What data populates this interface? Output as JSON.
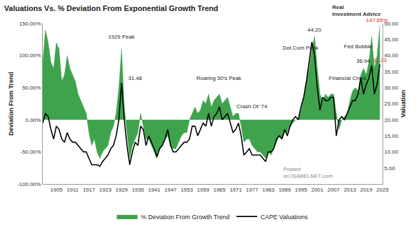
{
  "chart_data": {
    "type": "line",
    "title": "Valuations Vs. % Deviation From Exponential Growth Trend",
    "logo_text": "Real Investment Advice",
    "source": "Posted on ISABELNET.com",
    "y_label": "Deviation From Trend",
    "y2_label": "Valuation",
    "x": [
      1900,
      1901,
      1902,
      1903,
      1904,
      1905,
      1906,
      1907,
      1908,
      1909,
      1910,
      1911,
      1912,
      1913,
      1914,
      1915,
      1916,
      1917,
      1918,
      1919,
      1920,
      1921,
      1922,
      1923,
      1924,
      1925,
      1926,
      1927,
      1928,
      1929,
      1930,
      1931,
      1932,
      1933,
      1934,
      1935,
      1936,
      1937,
      1938,
      1939,
      1940,
      1941,
      1942,
      1943,
      1944,
      1945,
      1946,
      1947,
      1948,
      1949,
      1950,
      1951,
      1952,
      1953,
      1954,
      1955,
      1956,
      1957,
      1958,
      1959,
      1960,
      1961,
      1962,
      1963,
      1964,
      1965,
      1966,
      1967,
      1968,
      1969,
      1970,
      1971,
      1972,
      1973,
      1974,
      1975,
      1976,
      1977,
      1978,
      1979,
      1980,
      1981,
      1982,
      1983,
      1984,
      1985,
      1986,
      1987,
      1988,
      1989,
      1990,
      1991,
      1992,
      1993,
      1994,
      1995,
      1996,
      1997,
      1998,
      1999,
      2000,
      2001,
      2002,
      2003,
      2004,
      2005,
      2006,
      2007,
      2008,
      2009,
      2010,
      2011,
      2012,
      2013,
      2014,
      2015,
      2016,
      2017,
      2018,
      2019,
      2020,
      2021,
      2022,
      2023,
      2024
    ],
    "series": [
      {
        "name": "% Deviation From Growth Trend",
        "type": "area",
        "axis": "y",
        "color": "#3fa34d",
        "values": [
          90,
          140,
          120,
          90,
          80,
          120,
          110,
          60,
          70,
          100,
          80,
          70,
          60,
          40,
          30,
          20,
          10,
          -20,
          -40,
          -30,
          -50,
          -60,
          -50,
          -45,
          -40,
          -20,
          -10,
          10,
          50,
          110,
          20,
          -20,
          -60,
          -40,
          -30,
          -20,
          10,
          -10,
          -30,
          -30,
          -40,
          -50,
          -60,
          -45,
          -40,
          -30,
          -25,
          -40,
          -45,
          -45,
          -35,
          -25,
          -20,
          -20,
          0,
          10,
          20,
          10,
          15,
          30,
          25,
          40,
          20,
          30,
          35,
          40,
          25,
          30,
          35,
          20,
          5,
          10,
          10,
          -10,
          -35,
          -30,
          -30,
          -40,
          -45,
          -50,
          -50,
          -55,
          -60,
          -50,
          -55,
          -45,
          -35,
          -25,
          -30,
          -20,
          -20,
          -10,
          -5,
          0,
          0,
          15,
          35,
          60,
          80,
          110,
          130,
          80,
          40,
          30,
          40,
          35,
          40,
          40,
          10,
          -15,
          0,
          5,
          10,
          30,
          45,
          50,
          45,
          70,
          80,
          70,
          90,
          130,
          80,
          100,
          147.65
        ]
      },
      {
        "name": "CAPE Valuations",
        "type": "line",
        "axis": "y2",
        "color": "#000000",
        "values": [
          19,
          22,
          21,
          17,
          14,
          18,
          17,
          14,
          13,
          16,
          14,
          13,
          13,
          12,
          11,
          10,
          10,
          8,
          6,
          6,
          6,
          5.5,
          7,
          8,
          9,
          11,
          12,
          15,
          20,
          31.48,
          20,
          12,
          6,
          10,
          13,
          12,
          18,
          17,
          12,
          15,
          13,
          11,
          8.5,
          11,
          12,
          14,
          17,
          12,
          10,
          10,
          11,
          12,
          13,
          13,
          14,
          18,
          18,
          15,
          17,
          19,
          18,
          22,
          18,
          21,
          22,
          24,
          20,
          21,
          22,
          19,
          16,
          17,
          19,
          15,
          9,
          10,
          11,
          9,
          9,
          9,
          9,
          8,
          7,
          10,
          10,
          11,
          14,
          15,
          14,
          17,
          15,
          18,
          20,
          21,
          20,
          24,
          27,
          32,
          38,
          44.2,
          40,
          30,
          23,
          27,
          26,
          26,
          27,
          27,
          15,
          20,
          21,
          20,
          22,
          24,
          26,
          26,
          28,
          33,
          28,
          31,
          33,
          36.94,
          28,
          31,
          37.23
        ]
      }
    ],
    "xlim": [
      1900,
      2025
    ],
    "xticks": [
      1905,
      1911,
      1917,
      1923,
      1929,
      1935,
      1941,
      1947,
      1953,
      1959,
      1965,
      1971,
      1977,
      1983,
      1989,
      1995,
      2001,
      2007,
      2013,
      2019,
      2025
    ],
    "ylim": [
      -100,
      150
    ],
    "yticks": [
      {
        "value": -100,
        "label": "-100.00%"
      },
      {
        "value": -50,
        "label": "-50.00%"
      },
      {
        "value": 0,
        "label": "0.00%"
      },
      {
        "value": 50,
        "label": "50.00%"
      },
      {
        "value": 100,
        "label": "100.00%"
      },
      {
        "value": 150,
        "label": "150.00%"
      }
    ],
    "y2lim": [
      0,
      50
    ],
    "y2ticks": [
      {
        "value": 5,
        "label": "5.00"
      },
      {
        "value": 10,
        "label": "10.00"
      },
      {
        "value": 15,
        "label": "15.00"
      },
      {
        "value": 20,
        "label": "20.00"
      },
      {
        "value": 25,
        "label": "25.00"
      },
      {
        "value": 30,
        "label": "30.00"
      },
      {
        "value": 35,
        "label": "35.00"
      },
      {
        "value": 40,
        "label": "40.00"
      },
      {
        "value": 45,
        "label": "45.00"
      },
      {
        "value": 50,
        "label": "50.00"
      }
    ],
    "grid": false,
    "legend": "bottom",
    "annotations": [
      {
        "text": "1929 Peak",
        "x": 1929,
        "y": 122,
        "axis": "y"
      },
      {
        "text": "31.48",
        "x": 1934,
        "y": 31.48,
        "axis": "y2"
      },
      {
        "text": "Roaring 50's Peak",
        "x": 1965,
        "y": 58,
        "axis": "y"
      },
      {
        "text": "Crash Of '74",
        "x": 1977,
        "y": 14,
        "axis": "y"
      },
      {
        "text": "Dot.Com Peak",
        "x": 1995,
        "y": 41,
        "axis": "y2"
      },
      {
        "text": "44.20",
        "x": 2000,
        "y": 46.5,
        "axis": "y2"
      },
      {
        "text": "Financial Crisis",
        "x": 2012,
        "y": 31.5,
        "axis": "y2"
      },
      {
        "text": "Fed Bubble",
        "x": 2016,
        "y": 41.5,
        "axis": "y2"
      },
      {
        "text": "36.94",
        "x": 2018,
        "y": 36.94,
        "axis": "y2"
      },
      {
        "text": "147.65%",
        "x": 2023,
        "y": 147.65,
        "axis": "y",
        "color": "#e0201b"
      },
      {
        "text": "37.23",
        "x": 2024,
        "y": 37.23,
        "axis": "y2",
        "color": "#e0201b"
      }
    ]
  }
}
